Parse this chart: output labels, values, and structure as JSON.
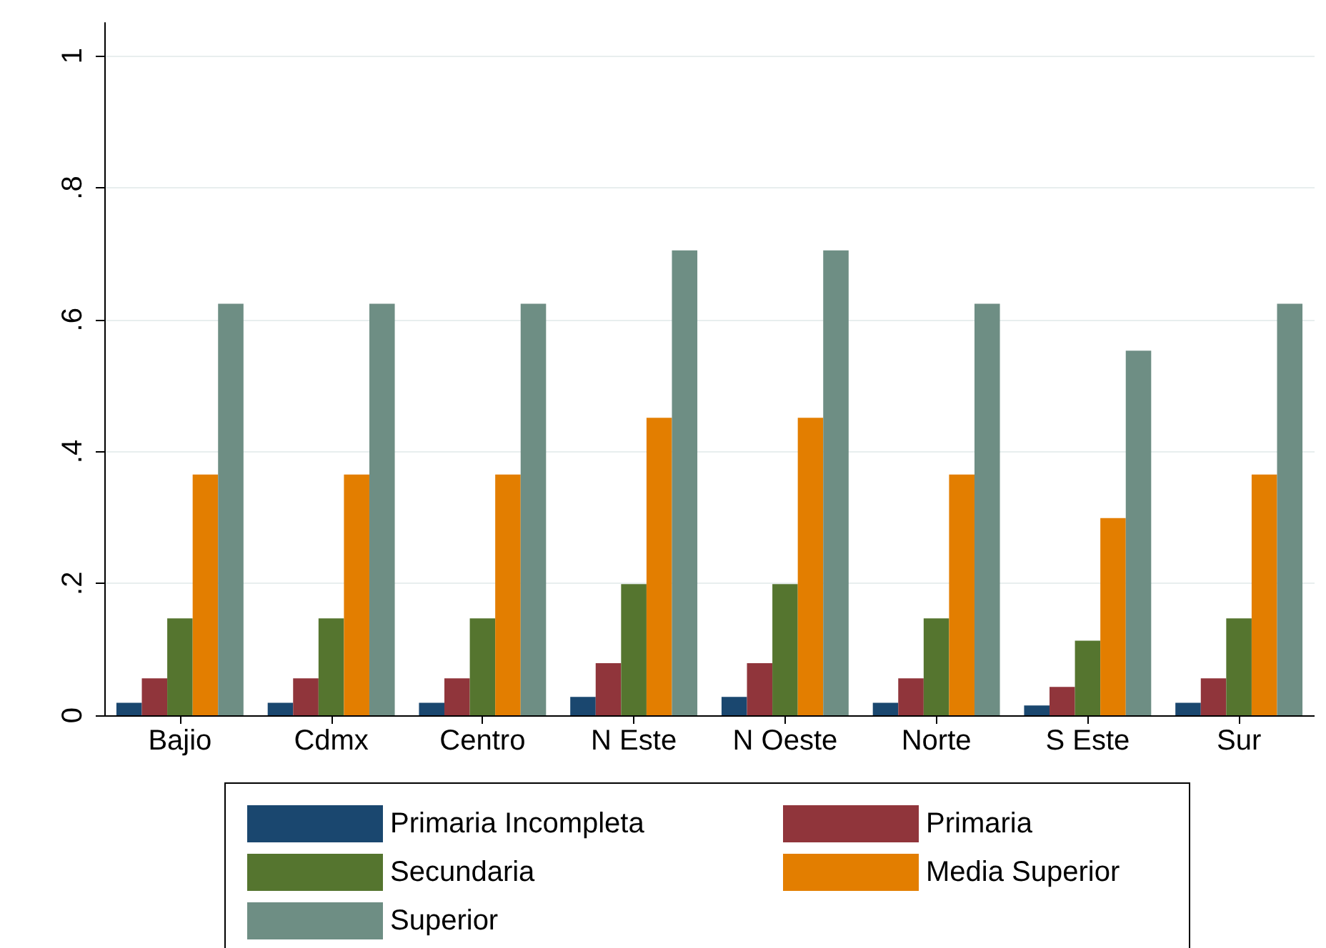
{
  "chart_data": {
    "type": "bar",
    "categories": [
      "Bajio",
      "Cdmx",
      "Centro",
      "N Este",
      "N Oeste",
      "Norte",
      "S Este",
      "Sur"
    ],
    "series": [
      {
        "name": "Primaria Incompleta",
        "color": "#1a476f",
        "values": [
          0.019,
          0.019,
          0.019,
          0.028,
          0.028,
          0.019,
          0.015,
          0.019
        ]
      },
      {
        "name": "Primaria",
        "color": "#90353b",
        "values": [
          0.056,
          0.056,
          0.056,
          0.079,
          0.079,
          0.056,
          0.043,
          0.056
        ]
      },
      {
        "name": "Secundaria",
        "color": "#55752f",
        "values": [
          0.147,
          0.147,
          0.147,
          0.199,
          0.199,
          0.147,
          0.113,
          0.147
        ]
      },
      {
        "name": "Media Superior",
        "color": "#e37e00",
        "values": [
          0.365,
          0.365,
          0.365,
          0.451,
          0.451,
          0.365,
          0.299,
          0.365
        ]
      },
      {
        "name": "Superior",
        "color": "#6e8e84",
        "values": [
          0.624,
          0.624,
          0.624,
          0.705,
          0.705,
          0.624,
          0.553,
          0.624
        ]
      }
    ],
    "ylim": [
      0,
      1.05
    ],
    "yticks": [
      0,
      {
        "value": 0.2,
        "label": ".2"
      },
      {
        "value": 0.4,
        "label": ".4"
      },
      {
        "value": 0.6,
        "label": ".6"
      },
      {
        "value": 0.8,
        "label": ".8"
      },
      1
    ],
    "grid": "y",
    "legend": "bottom"
  }
}
